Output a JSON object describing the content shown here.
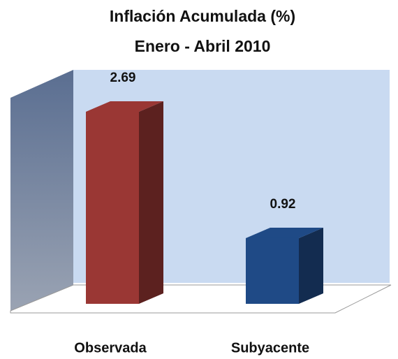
{
  "chart_data": {
    "type": "bar3d",
    "title": "Inflación  Acumulada (%)",
    "subtitle": "Enero - Abril 2010",
    "categories": [
      "Observada",
      "Subyacente"
    ],
    "values": [
      2.69,
      0.92
    ],
    "colors": [
      "#9a3734",
      "#1f4a86"
    ]
  }
}
